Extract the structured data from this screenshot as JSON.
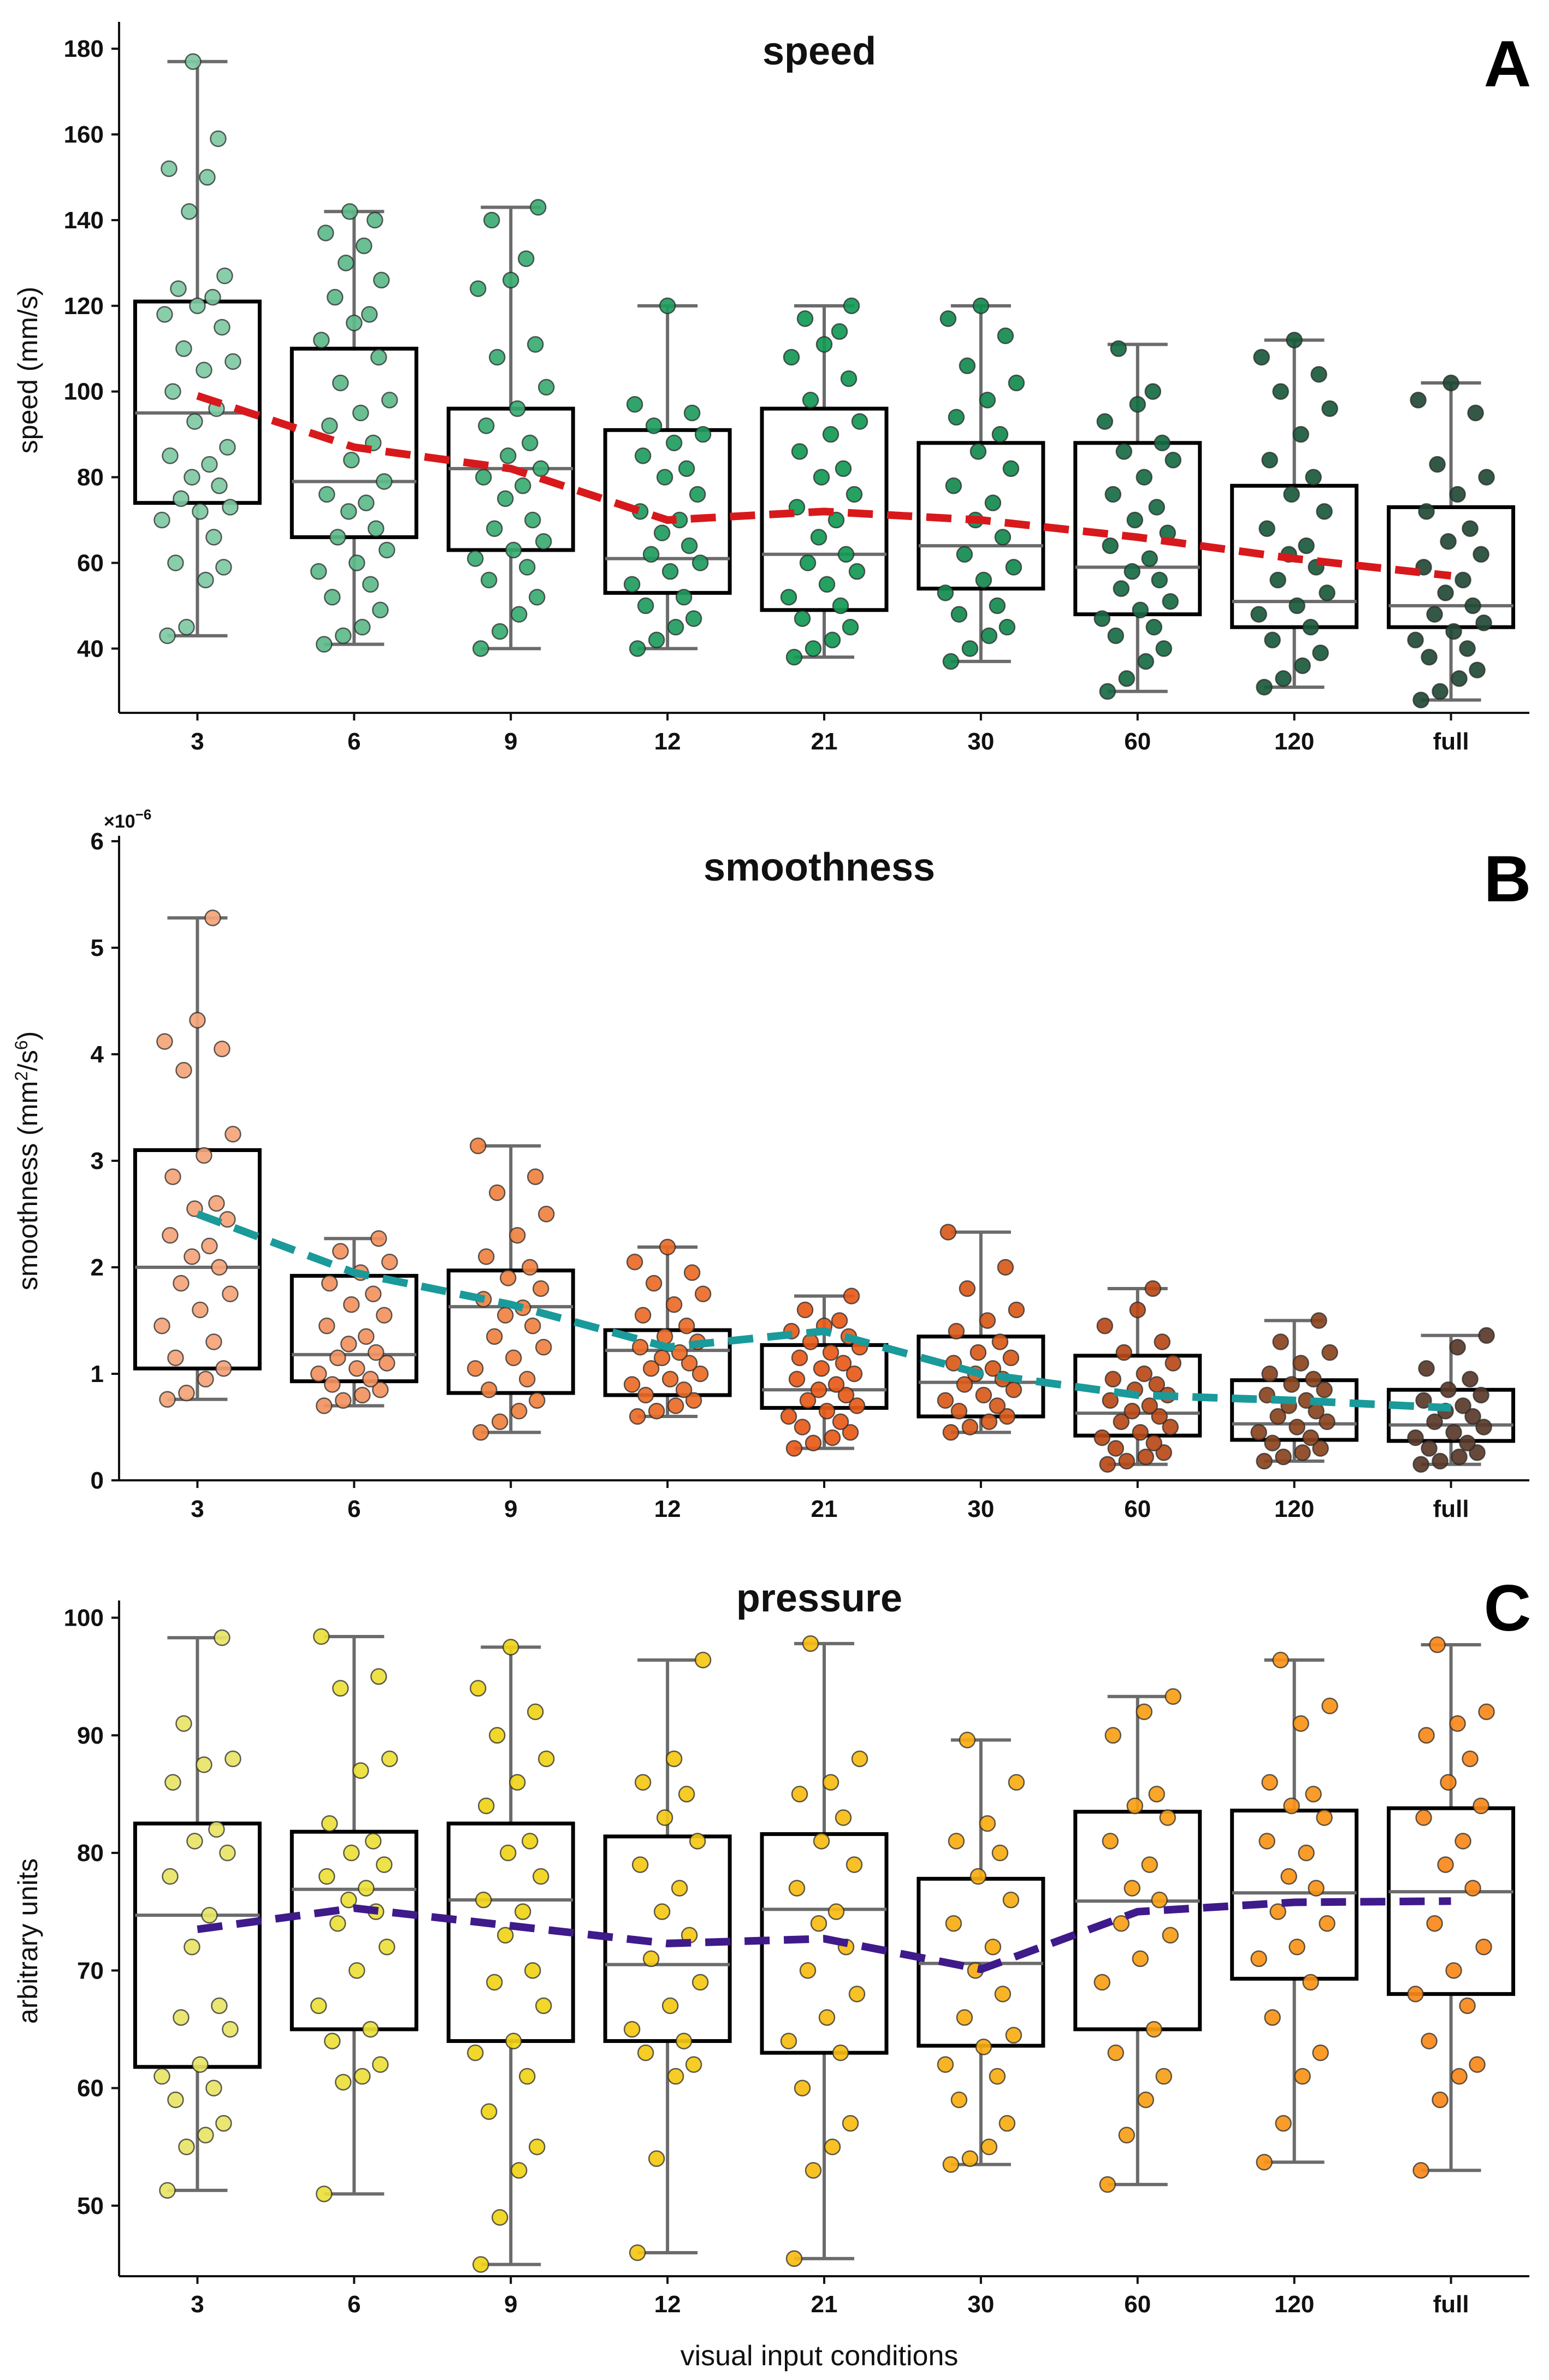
{
  "chart_data": [
    {
      "type": "box",
      "panel_letter": "A",
      "title": "speed",
      "ylabel": "speed (mm/s)",
      "ylim": [
        25,
        185
      ],
      "yticks": [
        40,
        60,
        80,
        100,
        120,
        140,
        160,
        180
      ],
      "categories": [
        "3",
        "6",
        "9",
        "12",
        "21",
        "30",
        "60",
        "120",
        "full"
      ],
      "whisker_low": [
        43,
        41,
        40,
        40,
        38,
        37,
        30,
        31,
        28
      ],
      "q1": [
        74,
        66,
        63,
        53,
        49,
        54,
        48,
        45,
        45
      ],
      "median": [
        95,
        79,
        82,
        61,
        62,
        64,
        59,
        51,
        50
      ],
      "q3": [
        121,
        110,
        96,
        91,
        96,
        88,
        88,
        78,
        73
      ],
      "whisker_high": [
        177,
        142,
        143,
        120,
        120,
        120,
        111,
        112,
        102
      ],
      "mean_line": [
        99,
        87,
        82,
        70,
        72,
        70,
        66,
        61,
        57
      ],
      "mean_line_color": "#d7191c",
      "point_colors": [
        "#7fc9a3",
        "#5dba8a",
        "#3aab72",
        "#1f9c5e",
        "#129955",
        "#138a4f",
        "#176b44",
        "#1b5a3c",
        "#234a36"
      ],
      "points": [
        [
          43,
          45,
          56,
          59,
          60,
          66,
          70,
          72,
          73,
          75,
          78,
          80,
          83,
          85,
          87,
          93,
          96,
          100,
          105,
          107,
          110,
          115,
          118,
          120,
          122,
          124,
          127,
          142,
          150,
          152,
          159,
          177
        ],
        [
          41,
          43,
          45,
          49,
          52,
          55,
          58,
          60,
          63,
          66,
          68,
          72,
          74,
          76,
          79,
          84,
          88,
          92,
          95,
          98,
          102,
          108,
          112,
          116,
          118,
          122,
          126,
          130,
          134,
          137,
          140,
          142
        ],
        [
          40,
          44,
          48,
          52,
          56,
          59,
          61,
          63,
          65,
          68,
          70,
          75,
          78,
          80,
          82,
          85,
          88,
          92,
          96,
          101,
          108,
          111,
          124,
          126,
          131,
          140,
          143
        ],
        [
          40,
          42,
          45,
          47,
          50,
          52,
          55,
          58,
          60,
          62,
          64,
          67,
          70,
          72,
          76,
          80,
          82,
          85,
          88,
          90,
          92,
          95,
          97,
          120
        ],
        [
          38,
          40,
          42,
          45,
          47,
          50,
          52,
          55,
          58,
          60,
          62,
          66,
          70,
          73,
          76,
          80,
          82,
          86,
          90,
          93,
          98,
          103,
          108,
          111,
          114,
          117,
          120
        ],
        [
          37,
          40,
          43,
          45,
          48,
          50,
          53,
          56,
          59,
          62,
          66,
          70,
          74,
          78,
          82,
          86,
          90,
          94,
          98,
          102,
          106,
          113,
          117,
          120
        ],
        [
          30,
          33,
          37,
          40,
          43,
          45,
          47,
          49,
          51,
          54,
          56,
          58,
          61,
          64,
          67,
          70,
          73,
          76,
          80,
          84,
          86,
          88,
          93,
          97,
          100,
          110
        ],
        [
          31,
          33,
          36,
          39,
          42,
          45,
          48,
          50,
          53,
          56,
          59,
          62,
          64,
          68,
          72,
          76,
          80,
          84,
          90,
          96,
          100,
          104,
          108,
          112
        ],
        [
          28,
          30,
          33,
          35,
          38,
          40,
          42,
          44,
          46,
          48,
          50,
          53,
          56,
          59,
          62,
          65,
          68,
          72,
          76,
          80,
          83,
          95,
          98,
          102
        ]
      ]
    },
    {
      "type": "box",
      "panel_letter": "B",
      "title": "smoothness",
      "ylabel_main": "smoothness (mm",
      "ylabel_sup1": "2",
      "ylabel_mid": "/s",
      "ylabel_sup2": "6",
      "ylabel_end": ")",
      "multiplier_base": "×10",
      "multiplier_exp": "−6",
      "ylim": [
        0,
        6
      ],
      "yticks": [
        0,
        1,
        2,
        3,
        4,
        5,
        6
      ],
      "categories": [
        "3",
        "6",
        "9",
        "12",
        "21",
        "30",
        "60",
        "120",
        "full"
      ],
      "whisker_low": [
        0.76,
        0.7,
        0.45,
        0.6,
        0.3,
        0.45,
        0.15,
        0.18,
        0.15
      ],
      "q1": [
        1.05,
        0.93,
        0.82,
        0.8,
        0.68,
        0.6,
        0.42,
        0.38,
        0.37
      ],
      "median": [
        2.0,
        1.18,
        1.63,
        1.22,
        0.85,
        0.92,
        0.63,
        0.53,
        0.52
      ],
      "q3": [
        3.1,
        1.92,
        1.97,
        1.41,
        1.27,
        1.35,
        1.17,
        0.94,
        0.85
      ],
      "whisker_high": [
        5.28,
        2.27,
        3.14,
        2.19,
        1.73,
        2.33,
        1.8,
        1.5,
        1.36
      ],
      "mean_line": [
        2.5,
        1.95,
        1.65,
        1.25,
        1.4,
        1.0,
        0.8,
        0.75,
        0.68
      ],
      "mean_line_color": "#1a9a9a",
      "point_colors": [
        "#f4a47a",
        "#f29360",
        "#f08242",
        "#ea6b28",
        "#e85a1a",
        "#d95a1a",
        "#b94a18",
        "#8a4420",
        "#5a3a2a"
      ],
      "points": [
        [
          0.76,
          0.82,
          0.95,
          1.05,
          1.15,
          1.3,
          1.45,
          1.6,
          1.75,
          1.85,
          2.0,
          2.1,
          2.2,
          2.3,
          2.45,
          2.55,
          2.6,
          2.85,
          3.05,
          3.25,
          3.85,
          4.05,
          4.12,
          4.32,
          5.28
        ],
        [
          0.7,
          0.75,
          0.8,
          0.85,
          0.9,
          0.95,
          1.0,
          1.05,
          1.1,
          1.15,
          1.2,
          1.28,
          1.35,
          1.45,
          1.55,
          1.65,
          1.75,
          1.85,
          1.95,
          2.05,
          2.15,
          2.27
        ],
        [
          0.45,
          0.55,
          0.65,
          0.75,
          0.85,
          0.95,
          1.05,
          1.15,
          1.25,
          1.35,
          1.45,
          1.55,
          1.62,
          1.7,
          1.8,
          1.9,
          2.0,
          2.1,
          2.3,
          2.5,
          2.7,
          2.85,
          3.14
        ],
        [
          0.6,
          0.65,
          0.7,
          0.75,
          0.8,
          0.85,
          0.9,
          0.95,
          1.0,
          1.05,
          1.1,
          1.15,
          1.2,
          1.25,
          1.3,
          1.35,
          1.45,
          1.55,
          1.65,
          1.75,
          1.85,
          1.95,
          2.05,
          2.19
        ],
        [
          0.3,
          0.35,
          0.4,
          0.45,
          0.5,
          0.55,
          0.6,
          0.65,
          0.7,
          0.75,
          0.8,
          0.85,
          0.9,
          0.95,
          1.0,
          1.05,
          1.1,
          1.15,
          1.2,
          1.25,
          1.3,
          1.35,
          1.4,
          1.45,
          1.5,
          1.6,
          1.73
        ],
        [
          0.45,
          0.5,
          0.55,
          0.6,
          0.65,
          0.7,
          0.75,
          0.8,
          0.85,
          0.9,
          0.95,
          1.0,
          1.05,
          1.1,
          1.15,
          1.2,
          1.3,
          1.4,
          1.5,
          1.6,
          1.8,
          2.0,
          2.33
        ],
        [
          0.15,
          0.18,
          0.22,
          0.26,
          0.3,
          0.35,
          0.4,
          0.45,
          0.5,
          0.55,
          0.6,
          0.65,
          0.7,
          0.75,
          0.8,
          0.85,
          0.9,
          0.95,
          1.0,
          1.1,
          1.2,
          1.3,
          1.45,
          1.6,
          1.8
        ],
        [
          0.18,
          0.22,
          0.26,
          0.3,
          0.35,
          0.4,
          0.45,
          0.5,
          0.55,
          0.6,
          0.65,
          0.7,
          0.75,
          0.8,
          0.85,
          0.9,
          0.95,
          1.0,
          1.1,
          1.2,
          1.3,
          1.5
        ],
        [
          0.15,
          0.18,
          0.22,
          0.26,
          0.3,
          0.35,
          0.4,
          0.45,
          0.5,
          0.55,
          0.6,
          0.65,
          0.7,
          0.75,
          0.8,
          0.85,
          0.95,
          1.05,
          1.25,
          1.36
        ]
      ]
    },
    {
      "type": "box",
      "panel_letter": "C",
      "title": "pressure",
      "ylabel": "arbitrary units",
      "xlabel": "visual input conditions",
      "ylim": [
        44,
        101
      ],
      "yticks": [
        50,
        60,
        70,
        80,
        90,
        100
      ],
      "categories": [
        "3",
        "6",
        "9",
        "12",
        "21",
        "30",
        "60",
        "120",
        "full"
      ],
      "whisker_low": [
        51.3,
        51.0,
        45.0,
        46.0,
        45.5,
        53.5,
        51.8,
        53.7,
        53.0
      ],
      "q1": [
        61.8,
        65.0,
        64.0,
        64.0,
        63.0,
        63.6,
        65.0,
        69.3,
        68.0
      ],
      "median": [
        74.7,
        76.9,
        76.0,
        70.5,
        75.2,
        70.6,
        75.9,
        76.6,
        76.7
      ],
      "q3": [
        82.5,
        81.8,
        82.5,
        81.4,
        81.6,
        77.8,
        83.5,
        83.6,
        83.8
      ],
      "whisker_high": [
        98.3,
        98.4,
        97.5,
        96.4,
        97.8,
        89.6,
        93.3,
        96.4,
        97.7
      ],
      "mean_line": [
        73.5,
        75.3,
        73.8,
        72.3,
        72.7,
        70.1,
        75.0,
        75.8,
        75.9
      ],
      "mean_line_color": "#3f1a8a",
      "point_colors": [
        "#e8e467",
        "#ebe03a",
        "#f0d418",
        "#f5c814",
        "#f7bc12",
        "#f8ae14",
        "#f8a016",
        "#f89418",
        "#f8881a"
      ],
      "points": [
        [
          51.3,
          55.0,
          56.0,
          57.0,
          59.0,
          60.0,
          61.0,
          62.0,
          65.0,
          66.0,
          67.0,
          72.0,
          74.7,
          78.0,
          80.0,
          81.0,
          82.0,
          86.0,
          87.5,
          88.0,
          91.0,
          98.3
        ],
        [
          51.0,
          60.5,
          61.0,
          62.0,
          64.0,
          65.0,
          67.0,
          70.0,
          72.0,
          74.0,
          75.0,
          76.0,
          77.0,
          78.0,
          79.0,
          80.0,
          81.0,
          82.5,
          87.0,
          88.0,
          94.0,
          95.0,
          98.4
        ],
        [
          45.0,
          49.0,
          53.0,
          55.0,
          58.0,
          61.0,
          63.0,
          64.0,
          67.0,
          69.0,
          70.0,
          73.0,
          75.0,
          76.0,
          78.0,
          80.0,
          81.0,
          84.0,
          86.0,
          88.0,
          90.0,
          92.0,
          94.0,
          97.5
        ],
        [
          46.0,
          54.0,
          61.0,
          62.0,
          63.0,
          64.0,
          65.0,
          67.0,
          69.0,
          71.0,
          73.0,
          75.0,
          77.0,
          79.0,
          81.0,
          83.0,
          85.0,
          86.0,
          88.0,
          96.4
        ],
        [
          45.5,
          53.0,
          55.0,
          57.0,
          60.0,
          63.0,
          64.0,
          66.0,
          68.0,
          70.0,
          72.0,
          74.0,
          75.0,
          77.0,
          79.0,
          81.0,
          83.0,
          85.0,
          86.0,
          88.0,
          97.8
        ],
        [
          53.5,
          54.0,
          55.0,
          57.0,
          59.0,
          61.0,
          62.0,
          63.5,
          64.5,
          66.0,
          68.0,
          70.0,
          72.0,
          74.0,
          76.0,
          78.0,
          80.0,
          81.0,
          82.5,
          86.0,
          89.6
        ],
        [
          51.8,
          56.0,
          59.0,
          61.0,
          63.0,
          65.0,
          69.0,
          71.0,
          73.0,
          74.0,
          76.0,
          77.0,
          79.0,
          81.0,
          83.0,
          84.0,
          85.0,
          90.0,
          92.0,
          93.3
        ],
        [
          53.7,
          57.0,
          61.0,
          63.0,
          66.0,
          69.0,
          71.0,
          72.0,
          74.0,
          75.0,
          77.0,
          78.0,
          80.0,
          81.0,
          83.0,
          84.0,
          85.0,
          86.0,
          91.0,
          92.5,
          96.4
        ],
        [
          53.0,
          59.0,
          61.0,
          62.0,
          64.0,
          67.0,
          68.0,
          70.0,
          72.0,
          74.0,
          77.0,
          79.0,
          81.0,
          83.0,
          84.0,
          86.0,
          88.0,
          90.0,
          91.0,
          92.0,
          97.7
        ]
      ]
    }
  ]
}
